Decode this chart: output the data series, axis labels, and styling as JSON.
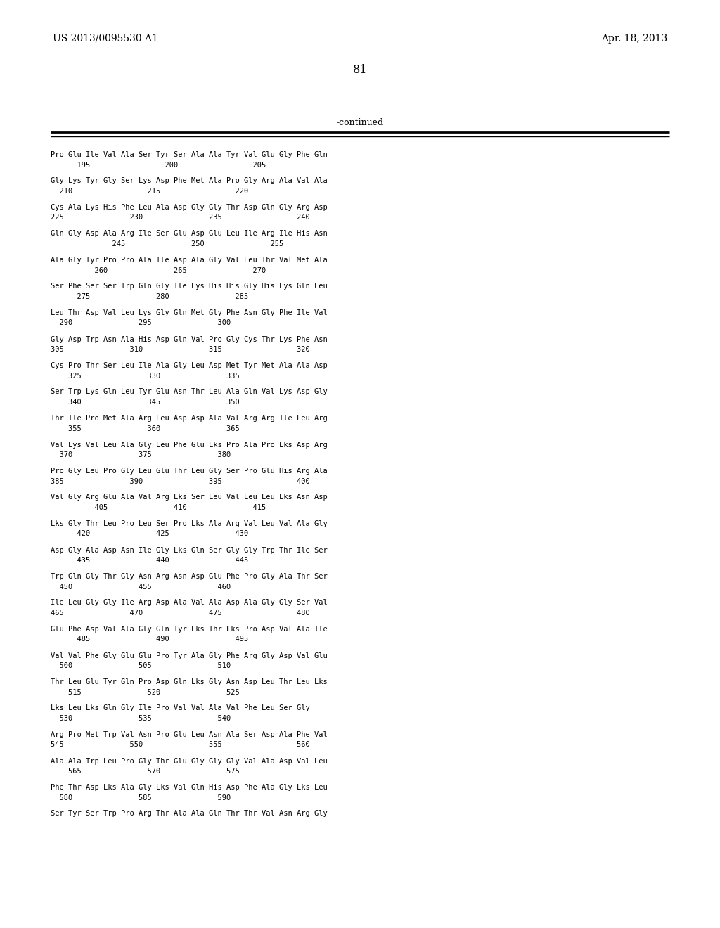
{
  "header_left": "US 2013/0095530 A1",
  "header_right": "Apr. 18, 2013",
  "page_number": "81",
  "continued_label": "-continued",
  "background_color": "#ffffff",
  "text_color": "#000000",
  "seq_blocks": [
    [
      "Pro Glu Ile Val Ala Ser Tyr Ser Ala Ala Tyr Val Glu Gly Phe Gln",
      "      195                 200                 205"
    ],
    [
      "Gly Lys Tyr Gly Ser Lys Asp Phe Met Ala Pro Gly Arg Ala Val Ala",
      "  210                 215                 220"
    ],
    [
      "Cys Ala Lys His Phe Leu Ala Asp Gly Gly Thr Asp Gln Gly Arg Asp",
      "225               230               235                 240"
    ],
    [
      "Gln Gly Asp Ala Arg Ile Ser Glu Asp Glu Leu Ile Arg Ile His Asn",
      "              245               250               255"
    ],
    [
      "Ala Gly Tyr Pro Pro Ala Ile Asp Ala Gly Val Leu Thr Val Met Ala",
      "          260               265               270"
    ],
    [
      "Ser Phe Ser Ser Trp Gln Gly Ile Lys His His Gly His Lys Gln Leu",
      "      275               280               285"
    ],
    [
      "Leu Thr Asp Val Leu Lys Gly Gln Met Gly Phe Asn Gly Phe Ile Val",
      "  290               295               300"
    ],
    [
      "Gly Asp Trp Asn Ala His Asp Gln Val Pro Gly Cys Thr Lys Phe Asn",
      "305               310               315                 320"
    ],
    [
      "Cys Pro Thr Ser Leu Ile Ala Gly Leu Asp Met Tyr Met Ala Ala Asp",
      "    325               330               335"
    ],
    [
      "Ser Trp Lys Gln Leu Tyr Glu Asn Thr Leu Ala Gln Val Lys Asp Gly",
      "    340               345               350"
    ],
    [
      "Thr Ile Pro Met Ala Arg Leu Asp Asp Ala Val Arg Arg Ile Leu Arg",
      "    355               360               365"
    ],
    [
      "Val Lys Val Leu Ala Gly Leu Phe Glu Lks Pro Ala Pro Lks Asp Arg",
      "  370               375               380"
    ],
    [
      "Pro Gly Leu Pro Gly Leu Glu Thr Leu Gly Ser Pro Glu His Arg Ala",
      "385               390               395                 400"
    ],
    [
      "Val Gly Arg Glu Ala Val Arg Lks Ser Leu Val Leu Leu Lks Asn Asp",
      "          405               410               415"
    ],
    [
      "Lks Gly Thr Leu Pro Leu Ser Pro Lks Ala Arg Val Leu Val Ala Gly",
      "      420               425               430"
    ],
    [
      "Asp Gly Ala Asp Asn Ile Gly Lks Gln Ser Gly Gly Trp Thr Ile Ser",
      "      435               440               445"
    ],
    [
      "Trp Gln Gly Thr Gly Asn Arg Asn Asp Glu Phe Pro Gly Ala Thr Ser",
      "  450               455               460"
    ],
    [
      "Ile Leu Gly Gly Ile Arg Asp Ala Val Ala Asp Ala Gly Gly Ser Val",
      "465               470               475                 480"
    ],
    [
      "Glu Phe Asp Val Ala Gly Gln Tyr Lks Thr Lks Pro Asp Val Ala Ile",
      "      485               490               495"
    ],
    [
      "Val Val Phe Gly Glu Glu Pro Tyr Ala Gly Phe Arg Gly Asp Val Glu",
      "  500               505               510"
    ],
    [
      "Thr Leu Glu Tyr Gln Pro Asp Gln Lks Gly Asn Asp Leu Thr Leu Lks",
      "    515               520               525"
    ],
    [
      "Lks Leu Lks Gln Gly Ile Pro Val Val Ala Val Phe Leu Ser Gly",
      "  530               535               540"
    ],
    [
      "Arg Pro Met Trp Val Asn Pro Glu Leu Asn Ala Ser Asp Ala Phe Val",
      "545               550               555                 560"
    ],
    [
      "Ala Ala Trp Leu Pro Gly Thr Glu Gly Gly Gly Val Ala Asp Val Leu",
      "    565               570               575"
    ],
    [
      "Phe Thr Asp Lks Ala Gly Lks Val Gln His Asp Phe Ala Gly Lks Leu",
      "  580               585               590"
    ],
    [
      "Ser Tyr Ser Trp Pro Arg Thr Ala Ala Gln Thr Thr Val Asn Arg Gly",
      ""
    ]
  ]
}
